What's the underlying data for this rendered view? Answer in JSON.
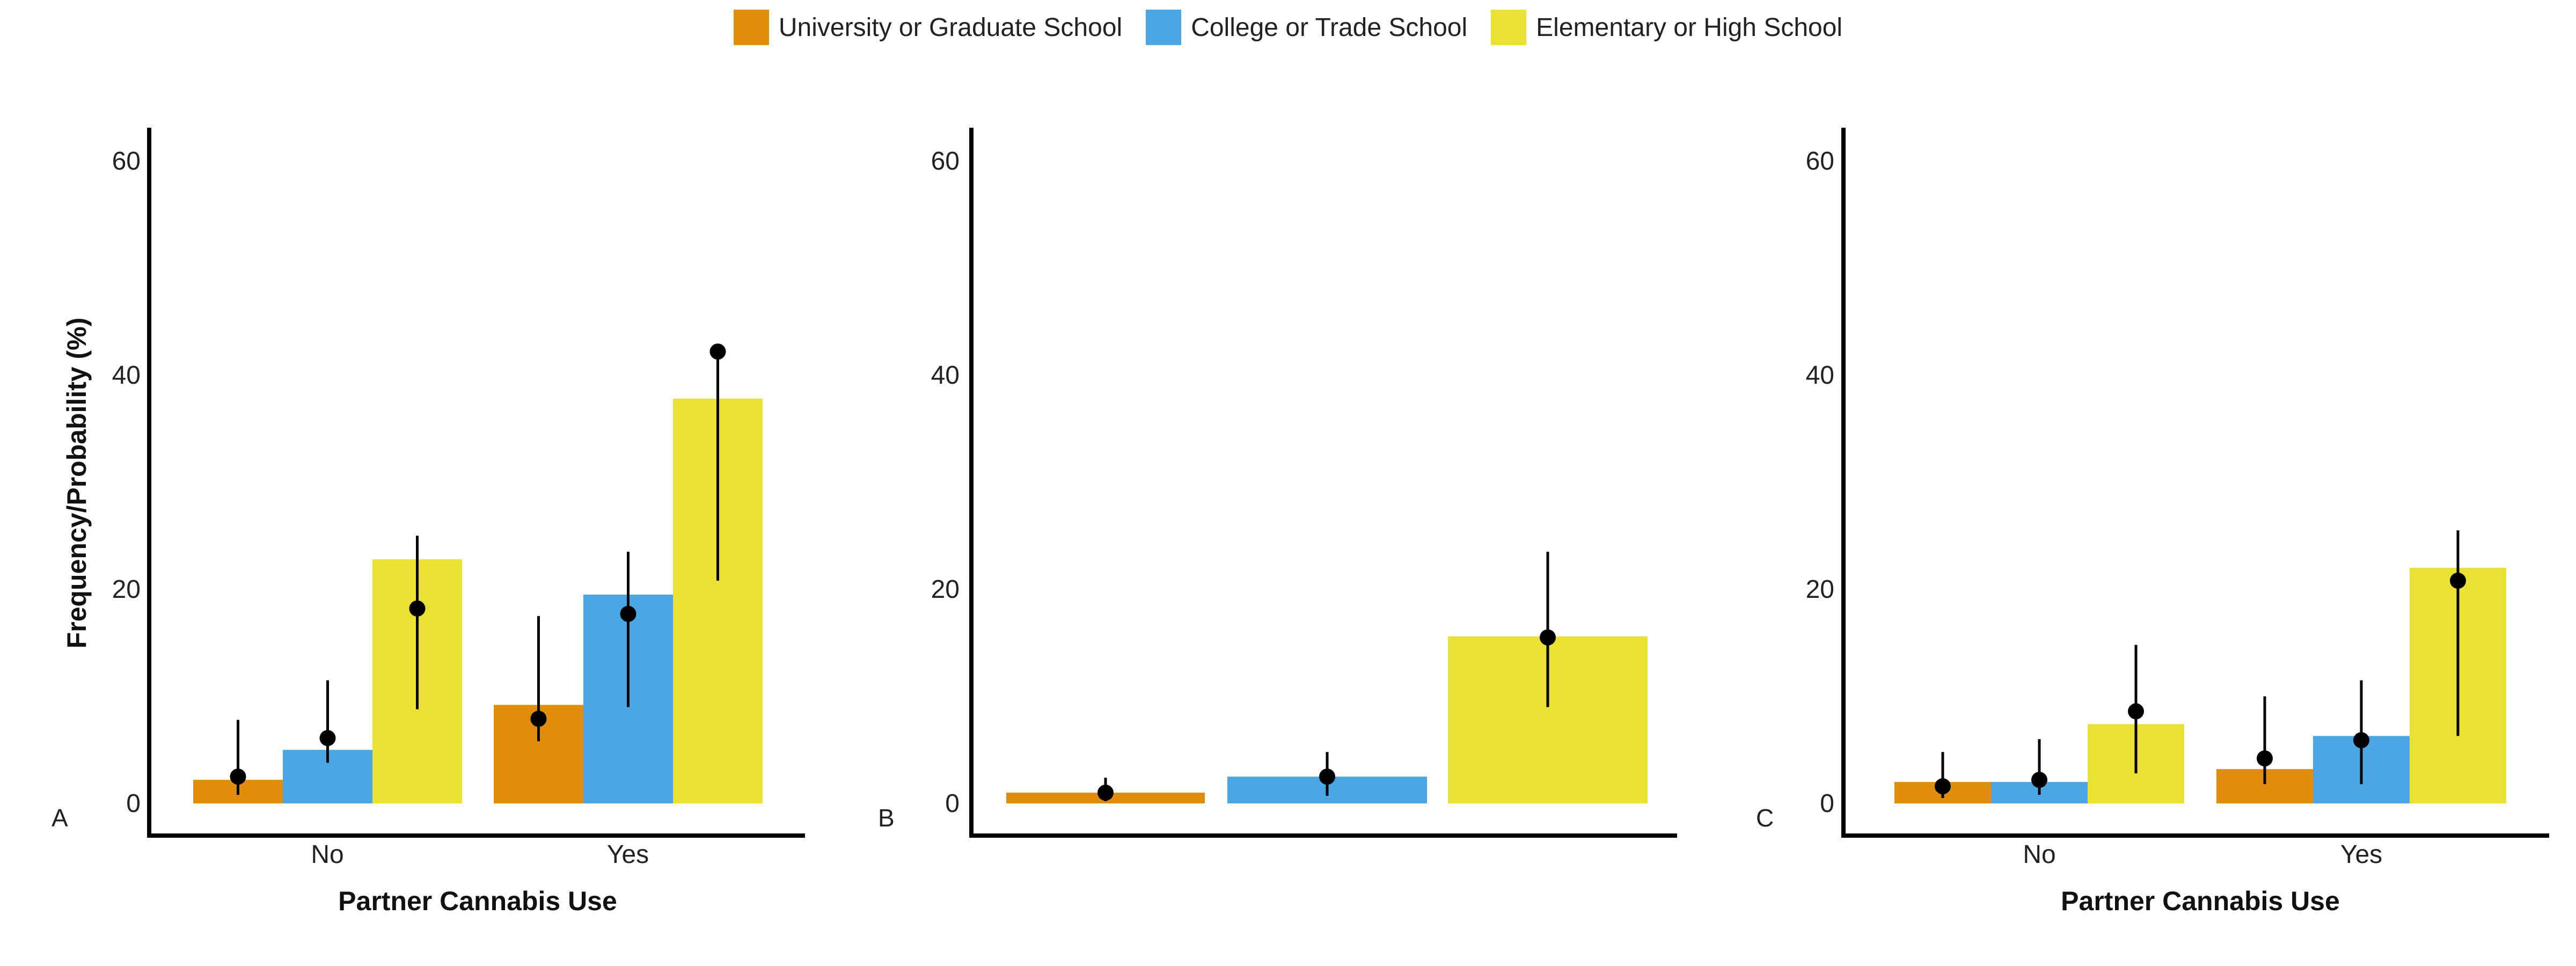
{
  "colors": {
    "University or Graduate School": "#DF8D0B",
    "College or Trade School": "#4AA7E3",
    "Elementary or High School": "#EAE133",
    "marker": "#000000"
  },
  "legend": {
    "items": [
      {
        "label": "University or Graduate School",
        "color": "#DF8D0B"
      },
      {
        "label": "College or Trade School",
        "color": "#4AA7E3"
      },
      {
        "label": "Elementary or High School",
        "color": "#EAE133"
      }
    ]
  },
  "chart_data": [
    {
      "type": "bar",
      "panel_label": "A",
      "ylabel": "Frequency/Probability (%)",
      "xlabel": "Partner Cannabis Use",
      "categories": [
        "No",
        "Yes"
      ],
      "ylim": [
        0,
        63
      ],
      "yticks": [
        0,
        20,
        40,
        60
      ],
      "series": [
        {
          "name": "University or Graduate School",
          "values": [
            2.2,
            9.2
          ],
          "points": [
            2.5,
            7.9
          ],
          "err_low": [
            0.8,
            5.8
          ],
          "err_high": [
            7.8,
            17.5
          ]
        },
        {
          "name": "College or Trade School",
          "values": [
            5.0,
            19.5
          ],
          "points": [
            6.1,
            17.7
          ],
          "err_low": [
            3.8,
            9.0
          ],
          "err_high": [
            11.5,
            23.5
          ]
        },
        {
          "name": "Elementary or High School",
          "values": [
            22.8,
            37.8
          ],
          "points": [
            18.2,
            42.2
          ],
          "err_low": [
            8.8,
            20.8
          ],
          "err_high": [
            25.0,
            42.5
          ]
        }
      ]
    },
    {
      "type": "bar",
      "panel_label": "B",
      "ylabel": "",
      "xlabel": "",
      "categories": [
        ""
      ],
      "ylim": [
        0,
        63
      ],
      "yticks": [
        0,
        20,
        40,
        60
      ],
      "series": [
        {
          "name": "University or Graduate School",
          "values": [
            1.0
          ],
          "points": [
            1.0
          ],
          "err_low": [
            0.2
          ],
          "err_high": [
            2.4
          ]
        },
        {
          "name": "College or Trade School",
          "values": [
            2.5
          ],
          "points": [
            2.5
          ],
          "err_low": [
            0.7
          ],
          "err_high": [
            4.8
          ]
        },
        {
          "name": "Elementary or High School",
          "values": [
            15.6
          ],
          "points": [
            15.5
          ],
          "err_low": [
            9.0
          ],
          "err_high": [
            23.5
          ]
        }
      ]
    },
    {
      "type": "bar",
      "panel_label": "C",
      "ylabel": "",
      "xlabel": "Partner Cannabis Use",
      "categories": [
        "No",
        "Yes"
      ],
      "ylim": [
        0,
        63
      ],
      "yticks": [
        0,
        20,
        40,
        60
      ],
      "series": [
        {
          "name": "University or Graduate School",
          "values": [
            2.0,
            3.2
          ],
          "points": [
            1.6,
            4.2
          ],
          "err_low": [
            0.5,
            1.8
          ],
          "err_high": [
            4.8,
            10.0
          ]
        },
        {
          "name": "College or Trade School",
          "values": [
            2.0,
            6.3
          ],
          "points": [
            2.2,
            5.9
          ],
          "err_low": [
            0.8,
            1.8
          ],
          "err_high": [
            6.0,
            11.5
          ]
        },
        {
          "name": "Elementary or High School",
          "values": [
            7.4,
            22.0
          ],
          "points": [
            8.6,
            20.8
          ],
          "err_low": [
            2.8,
            6.3
          ],
          "err_high": [
            14.8,
            25.5
          ]
        }
      ]
    }
  ]
}
